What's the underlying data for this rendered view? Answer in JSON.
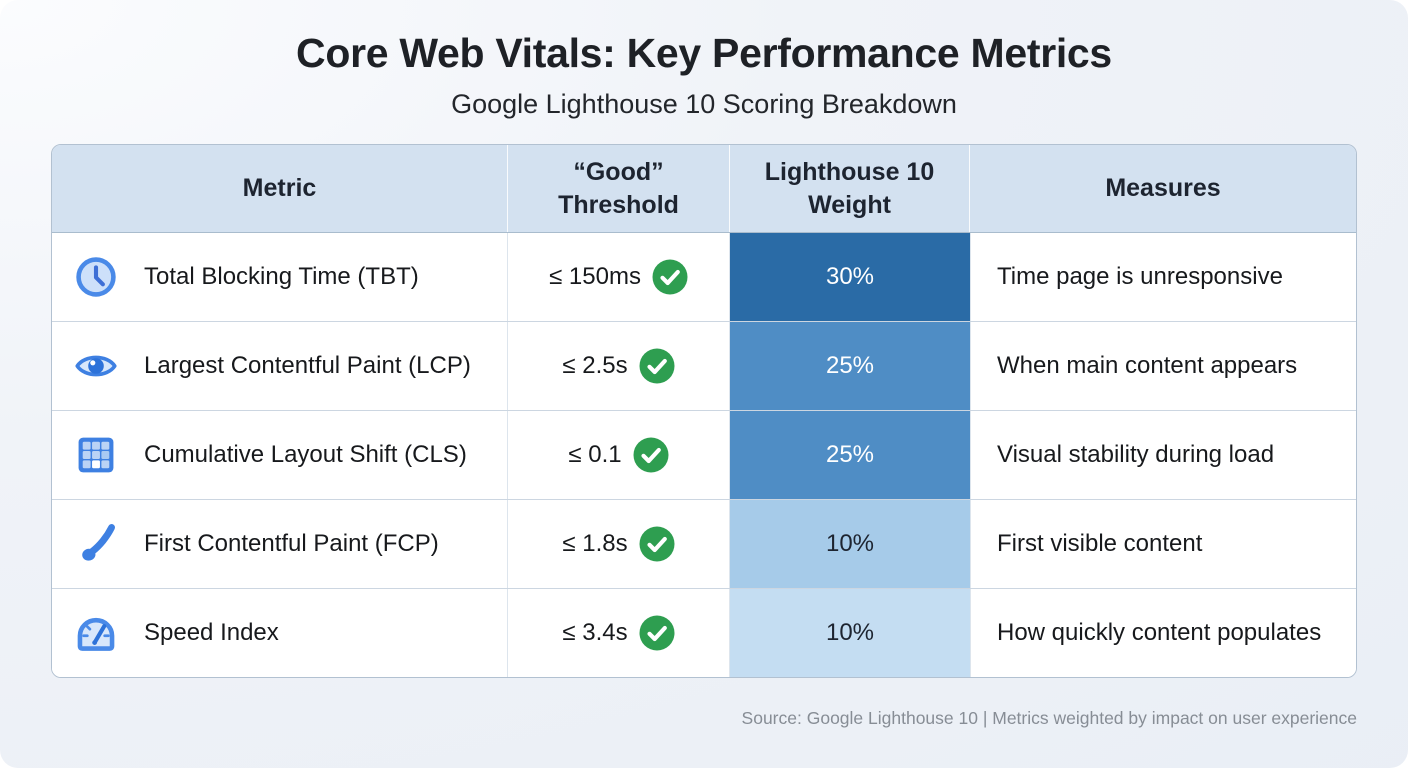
{
  "page": {
    "title": "Core Web Vitals: Key Performance Metrics",
    "subtitle": "Google Lighthouse 10 Scoring Breakdown",
    "footer": "Source: Google Lighthouse 10 | Metrics weighted by impact on user experience"
  },
  "table": {
    "headers": [
      "Metric",
      "“Good” Threshold",
      "Lighthouse 10 Weight",
      "Measures"
    ],
    "rows": [
      {
        "icon": "clock-icon",
        "metric": "Total Blocking Time (TBT)",
        "threshold": "≤ 150ms",
        "check": "check-icon",
        "weight": "30%",
        "weight_bg": "#2a6ba6",
        "weight_color": "#ffffff",
        "measures": "Time page is unresponsive"
      },
      {
        "icon": "eye-icon",
        "metric": "Largest Contentful Paint (LCP)",
        "threshold": "≤ 2.5s",
        "check": "check-icon",
        "weight": "25%",
        "weight_bg": "#4f8dc5",
        "weight_color": "#ffffff",
        "measures": "When main content appears"
      },
      {
        "icon": "grid-icon",
        "metric": "Cumulative Layout Shift (CLS)",
        "threshold": "≤ 0.1",
        "check": "check-icon",
        "weight": "25%",
        "weight_bg": "#4f8dc5",
        "weight_color": "#ffffff",
        "measures": "Visual stability during load"
      },
      {
        "icon": "paintbrush-icon",
        "metric": "First Contentful Paint (FCP)",
        "threshold": "≤ 1.8s",
        "check": "check-icon",
        "weight": "10%",
        "weight_bg": "#a6cbe9",
        "weight_color": "#1d2430",
        "measures": "First visible content"
      },
      {
        "icon": "speedometer-icon",
        "metric": "Speed Index",
        "threshold": "≤ 3.4s",
        "check": "check-icon",
        "weight": "10%",
        "weight_bg": "#c4ddf2",
        "weight_color": "#1d2430",
        "measures": "How quickly content populates"
      }
    ]
  },
  "colors": {
    "header_bg": "#d3e1f0",
    "check_green": "#2e9e50",
    "icon_blue": "#3e80e2"
  },
  "chart_data": {
    "type": "table",
    "title": "Core Web Vitals: Key Performance Metrics",
    "subtitle": "Google Lighthouse 10 Scoring Breakdown",
    "columns": [
      "Metric",
      "“Good” Threshold",
      "Lighthouse 10 Weight",
      "Measures"
    ],
    "rows": [
      [
        "Total Blocking Time (TBT)",
        "≤ 150ms",
        "30%",
        "Time page is unresponsive"
      ],
      [
        "Largest Contentful Paint (LCP)",
        "≤ 2.5s",
        "25%",
        "When main content appears"
      ],
      [
        "Cumulative Layout Shift (CLS)",
        "≤ 0.1",
        "25%",
        "Visual stability during load"
      ],
      [
        "First Contentful Paint (FCP)",
        "≤ 1.8s",
        "10%",
        "First visible content"
      ],
      [
        "Speed Index",
        "≤ 3.4s",
        "10%",
        "How quickly content populates"
      ]
    ],
    "weights_pct": [
      30,
      25,
      25,
      10,
      10
    ],
    "source": "Source: Google Lighthouse 10 | Metrics weighted by impact on user experience"
  }
}
